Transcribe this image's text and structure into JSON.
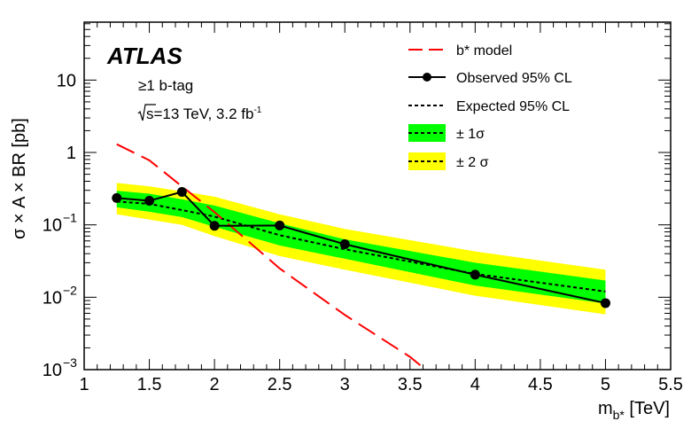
{
  "chart_data": {
    "type": "line",
    "logo": "ATLAS",
    "annotations": {
      "selection": "≥1 b-tag",
      "energy_prefix": "s",
      "energy_rest": "=13 TeV,  3.2 fb",
      "lumi_exp": "-1"
    },
    "xlabel": {
      "main": "m",
      "sub": "b*",
      "unit": " [TeV]"
    },
    "ylabel": "σ × A × BR [pb]",
    "xlim": [
      1,
      5.5
    ],
    "ylim_log10": [
      -3,
      1.8
    ],
    "xticks": [
      {
        "value": 1,
        "label": "1"
      },
      {
        "value": 1.5,
        "label": "1.5"
      },
      {
        "value": 2,
        "label": "2"
      },
      {
        "value": 2.5,
        "label": "2.5"
      },
      {
        "value": 3,
        "label": "3"
      },
      {
        "value": 3.5,
        "label": "3.5"
      },
      {
        "value": 4,
        "label": "4"
      },
      {
        "value": 4.5,
        "label": "4.5"
      },
      {
        "value": 5,
        "label": "5"
      },
      {
        "value": 5.5,
        "label": "5.5"
      }
    ],
    "yticks": [
      {
        "exp": -3,
        "label": "10",
        "sup": "−3"
      },
      {
        "exp": -2,
        "label": "10",
        "sup": "−2"
      },
      {
        "exp": -1,
        "label": "10",
        "sup": "−1"
      },
      {
        "exp": 0,
        "label": "1",
        "sup": ""
      },
      {
        "exp": 1,
        "label": "10",
        "sup": ""
      }
    ],
    "legend": [
      {
        "key": "model",
        "label": "b* model"
      },
      {
        "key": "observed",
        "label": "Observed 95% CL"
      },
      {
        "key": "expected",
        "label": "Expected 95% CL"
      },
      {
        "key": "band1",
        "label": "± 1σ"
      },
      {
        "key": "band2",
        "label": "± 2 σ"
      }
    ],
    "series": {
      "model": {
        "name": "b* model",
        "color": "#ff0000",
        "x": [
          1.25,
          1.5,
          1.75,
          2.0,
          2.5,
          3.0,
          3.5,
          3.62
        ],
        "y": [
          1.3,
          0.78,
          0.34,
          0.15,
          0.025,
          0.0057,
          0.0015,
          0.001
        ]
      },
      "observed": {
        "name": "Observed 95% CL",
        "color": "#000000",
        "x": [
          1.25,
          1.5,
          1.75,
          2.0,
          2.5,
          3.0,
          4.0,
          5.0
        ],
        "y": [
          0.235,
          0.215,
          0.285,
          0.097,
          0.098,
          0.054,
          0.0205,
          0.0083
        ]
      },
      "expected": {
        "name": "Expected 95% CL",
        "color": "#000000",
        "x": [
          1.25,
          1.5,
          1.75,
          2.0,
          2.5,
          3.0,
          4.0,
          5.0
        ],
        "y": [
          0.21,
          0.195,
          0.16,
          0.13,
          0.072,
          0.046,
          0.021,
          0.012
        ]
      },
      "band1": {
        "name": "± 1σ",
        "color": "#00ff00",
        "x": [
          1.25,
          1.5,
          1.75,
          2.0,
          2.5,
          3.0,
          4.0,
          5.0
        ],
        "low": [
          0.175,
          0.152,
          0.128,
          0.094,
          0.052,
          0.034,
          0.0145,
          0.0082
        ],
        "high": [
          0.295,
          0.27,
          0.225,
          0.185,
          0.105,
          0.063,
          0.03,
          0.017
        ]
      },
      "band2": {
        "name": "± 2 σ",
        "color": "#ffff00",
        "x": [
          1.25,
          1.5,
          1.75,
          2.0,
          2.5,
          3.0,
          4.0,
          5.0
        ],
        "low": [
          0.14,
          0.118,
          0.1,
          0.07,
          0.037,
          0.024,
          0.0105,
          0.0058
        ],
        "high": [
          0.38,
          0.34,
          0.29,
          0.245,
          0.14,
          0.088,
          0.043,
          0.024
        ]
      }
    }
  }
}
